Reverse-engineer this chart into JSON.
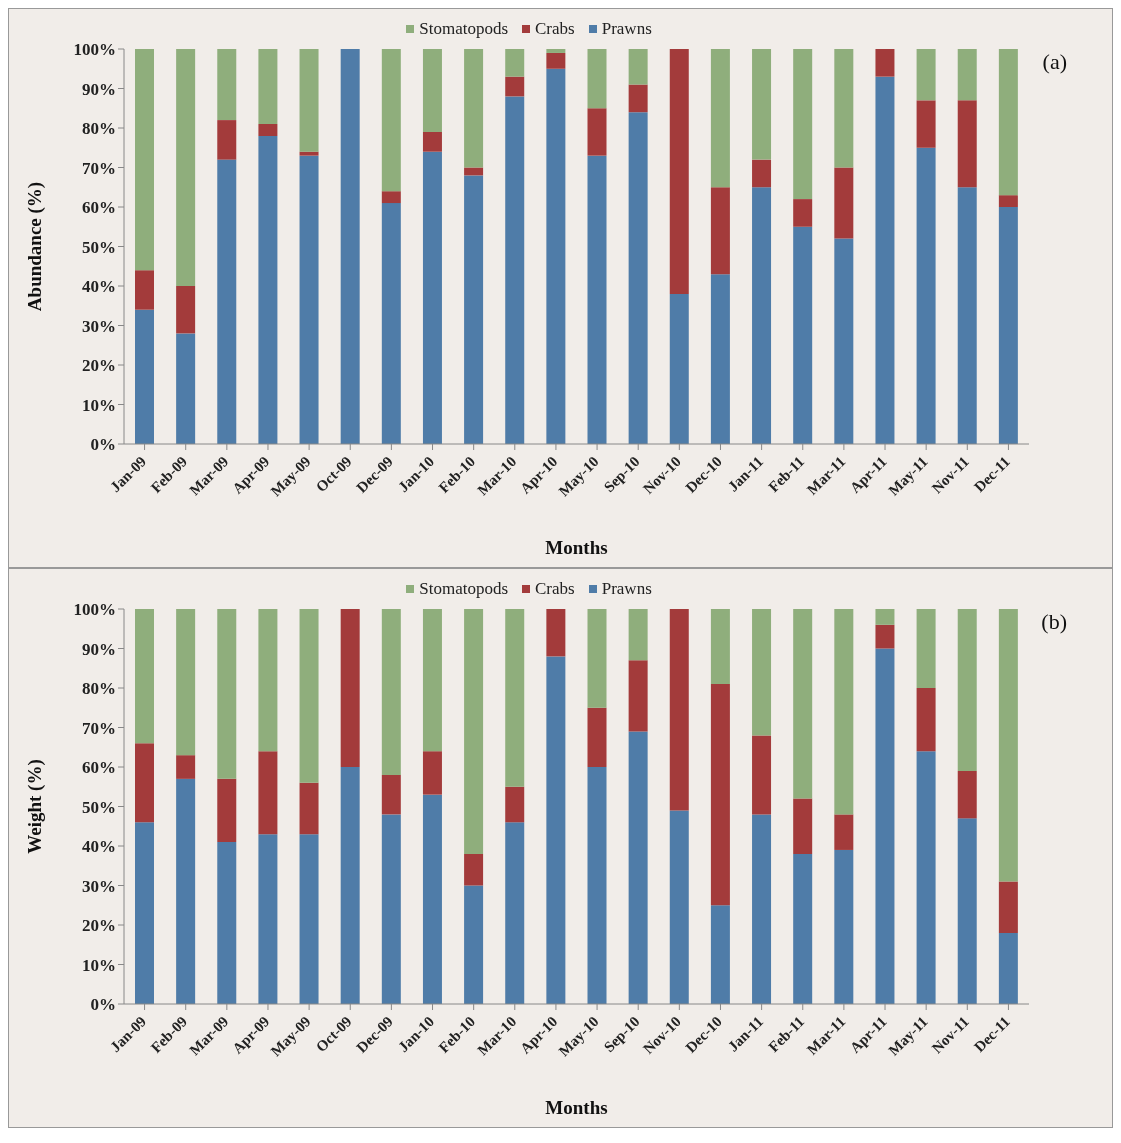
{
  "chart_data": [
    {
      "type": "bar",
      "stacked": true,
      "xlabel": "Months",
      "ylabel": "Abundance (%)",
      "annotations": [
        "(a)"
      ],
      "legend": "top",
      "grid": false,
      "categories": [
        "Jan-09",
        "Feb-09",
        "Mar-09",
        "Apr-09",
        "May-09",
        "Oct-09",
        "Dec-09",
        "Jan-10",
        "Feb-10",
        "Mar-10",
        "Apr-10",
        "May-10",
        "Sep-10",
        "Nov-10",
        "Dec-10",
        "Jan-11",
        "Feb-11",
        "Mar-11",
        "Apr-11",
        "May-11",
        "Nov-11",
        "Dec-11"
      ],
      "ylim": [
        0,
        100
      ],
      "yticks": [
        {
          "value": 0,
          "label": "0%"
        },
        {
          "value": 10,
          "label": "10%"
        },
        {
          "value": 20,
          "label": "20%"
        },
        {
          "value": 30,
          "label": "30%"
        },
        {
          "value": 40,
          "label": "40%"
        },
        {
          "value": 50,
          "label": "50%"
        },
        {
          "value": 60,
          "label": "60%"
        },
        {
          "value": 70,
          "label": "70%"
        },
        {
          "value": 80,
          "label": "80%"
        },
        {
          "value": 90,
          "label": "90%"
        },
        {
          "value": 100,
          "label": "100%"
        }
      ],
      "series": [
        {
          "name": "Prawns",
          "color": "#4f7ca8",
          "values": [
            34,
            28,
            72,
            78,
            73,
            100,
            61,
            74,
            68,
            88,
            95,
            73,
            84,
            38,
            43,
            65,
            55,
            52,
            93,
            75,
            65,
            60
          ]
        },
        {
          "name": "Crabs",
          "color": "#a33b3b",
          "values": [
            10,
            12,
            10,
            3,
            1,
            0,
            3,
            5,
            2,
            5,
            4,
            12,
            7,
            62,
            22,
            7,
            7,
            18,
            7,
            12,
            22,
            3
          ]
        },
        {
          "name": "Stomatopods",
          "color": "#8fae7c",
          "values": [
            56,
            60,
            18,
            19,
            26,
            0,
            36,
            21,
            30,
            7,
            1,
            15,
            9,
            0,
            35,
            28,
            38,
            30,
            0,
            13,
            13,
            37
          ]
        }
      ]
    },
    {
      "type": "bar",
      "stacked": true,
      "xlabel": "Months",
      "ylabel": "Weight (%)",
      "annotations": [
        "(b)"
      ],
      "legend": "top",
      "grid": false,
      "categories": [
        "Jan-09",
        "Feb-09",
        "Mar-09",
        "Apr-09",
        "May-09",
        "Oct-09",
        "Dec-09",
        "Jan-10",
        "Feb-10",
        "Mar-10",
        "Apr-10",
        "May-10",
        "Sep-10",
        "Nov-10",
        "Dec-10",
        "Jan-11",
        "Feb-11",
        "Mar-11",
        "Apr-11",
        "May-11",
        "Nov-11",
        "Dec-11"
      ],
      "ylim": [
        0,
        100
      ],
      "yticks": [
        {
          "value": 0,
          "label": "0%"
        },
        {
          "value": 10,
          "label": "10%"
        },
        {
          "value": 20,
          "label": "20%"
        },
        {
          "value": 30,
          "label": "30%"
        },
        {
          "value": 40,
          "label": "40%"
        },
        {
          "value": 50,
          "label": "50%"
        },
        {
          "value": 60,
          "label": "60%"
        },
        {
          "value": 70,
          "label": "70%"
        },
        {
          "value": 80,
          "label": "80%"
        },
        {
          "value": 90,
          "label": "90%"
        },
        {
          "value": 100,
          "label": "100%"
        }
      ],
      "series": [
        {
          "name": "Prawns",
          "color": "#4f7ca8",
          "values": [
            46,
            57,
            41,
            43,
            43,
            60,
            48,
            53,
            30,
            46,
            88,
            60,
            69,
            49,
            25,
            48,
            38,
            39,
            90,
            64,
            47,
            18
          ]
        },
        {
          "name": "Crabs",
          "color": "#a33b3b",
          "values": [
            20,
            6,
            16,
            21,
            13,
            40,
            10,
            11,
            8,
            9,
            12,
            15,
            18,
            51,
            56,
            20,
            14,
            9,
            6,
            16,
            12,
            13
          ]
        },
        {
          "name": "Stomatopods",
          "color": "#8fae7c",
          "values": [
            34,
            37,
            43,
            36,
            44,
            0,
            42,
            36,
            62,
            45,
            0,
            25,
            13,
            0,
            19,
            32,
            48,
            52,
            4,
            20,
            41,
            69
          ]
        }
      ]
    }
  ]
}
